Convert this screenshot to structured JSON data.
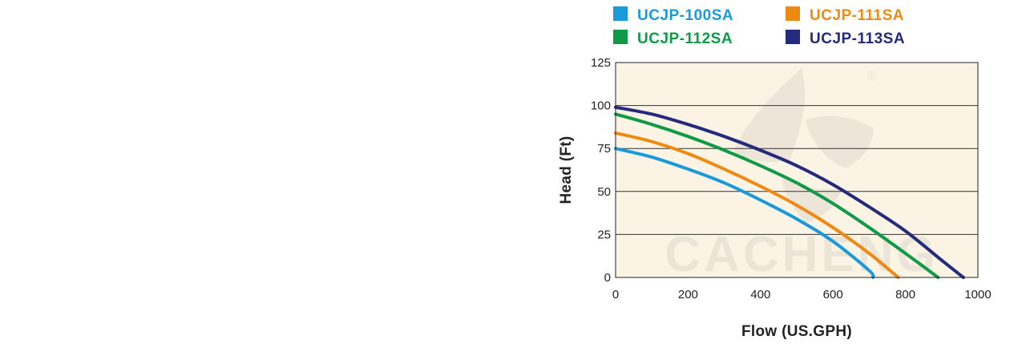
{
  "chart_data": {
    "type": "line",
    "title": "",
    "xlabel": "Flow (US.GPH)",
    "ylabel": "Head (Ft)",
    "xlim": [
      0,
      1000
    ],
    "ylim": [
      0,
      125
    ],
    "xticks": [
      "0",
      "200",
      "400",
      "600",
      "800",
      "1000"
    ],
    "yticks": [
      "0",
      "25",
      "50",
      "75",
      "100",
      "125"
    ],
    "grid": "horizontal",
    "legend_position": "top",
    "plot_background": "#fbf3e4",
    "series": [
      {
        "name": "UCJP-100SA",
        "color": "#1a9ad9",
        "x": [
          0,
          100,
          200,
          300,
          400,
          500,
          600,
          700,
          710
        ],
        "y": [
          75,
          70,
          63,
          55,
          45,
          34,
          21,
          4,
          0
        ]
      },
      {
        "name": "UCJP-111SA",
        "color": "#ee8a14",
        "x": [
          0,
          100,
          200,
          300,
          400,
          500,
          600,
          700,
          780
        ],
        "y": [
          84,
          79,
          72,
          63,
          53,
          42,
          29,
          14,
          0
        ]
      },
      {
        "name": "UCJP-112SA",
        "color": "#0f9a48",
        "x": [
          0,
          100,
          200,
          300,
          400,
          500,
          600,
          700,
          800,
          890
        ],
        "y": [
          95,
          89,
          82,
          74,
          65,
          55,
          43,
          29,
          14,
          0
        ]
      },
      {
        "name": "UCJP-113SA",
        "color": "#242a7c",
        "x": [
          0,
          100,
          200,
          300,
          400,
          500,
          600,
          700,
          800,
          900,
          960
        ],
        "y": [
          99,
          95,
          89,
          82,
          74,
          65,
          54,
          41,
          27,
          10,
          0
        ]
      }
    ]
  },
  "watermark": {
    "text": "CACHENG",
    "registered_mark": "®"
  }
}
